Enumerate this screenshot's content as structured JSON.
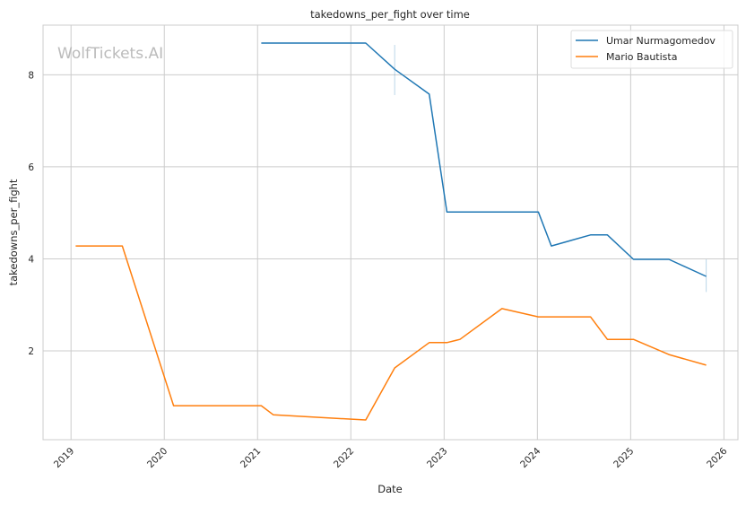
{
  "chart_data": {
    "type": "line",
    "title": "takedowns_per_fight over time",
    "xlabel": "Date",
    "ylabel": "takedowns_per_fight",
    "xlim": [
      2018.7,
      2026.15
    ],
    "ylim": [
      0.07,
      9.08
    ],
    "x_ticks": [
      2019,
      2020,
      2021,
      2022,
      2023,
      2024,
      2025,
      2026
    ],
    "x_tick_labels": [
      "2019",
      "2020",
      "2021",
      "2022",
      "2023",
      "2024",
      "2025",
      "2026"
    ],
    "y_ticks": [
      2,
      4,
      6,
      8
    ],
    "y_tick_labels": [
      "2",
      "4",
      "6",
      "8"
    ],
    "grid": true,
    "legend_position": "top-right",
    "watermark": "WolfTickets.AI",
    "series": [
      {
        "name": "Umar Nurmagomedov",
        "color": "#1f77b4",
        "x": [
          2021.04,
          2022.16,
          2022.47,
          2022.84,
          2023.03,
          2024.01,
          2024.15,
          2024.57,
          2024.75,
          2025.03,
          2025.41,
          2025.81
        ],
        "y": [
          8.69,
          8.69,
          8.12,
          7.58,
          5.02,
          5.02,
          4.28,
          4.52,
          4.52,
          3.99,
          3.99,
          3.62
        ],
        "error_bars": [
          {
            "x": 2022.47,
            "low": 7.56,
            "high": 8.65
          },
          {
            "x": 2025.81,
            "low": 3.28,
            "high": 3.99
          }
        ]
      },
      {
        "name": "Mario Bautista",
        "color": "#ff7f0e",
        "x": [
          2019.05,
          2019.55,
          2020.1,
          2021.04,
          2021.17,
          2022.16,
          2022.47,
          2022.84,
          2023.03,
          2023.17,
          2023.62,
          2024.01,
          2024.57,
          2024.75,
          2025.03,
          2025.41,
          2025.81
        ],
        "y": [
          4.28,
          4.28,
          0.81,
          0.81,
          0.61,
          0.5,
          1.63,
          2.18,
          2.18,
          2.25,
          2.92,
          2.74,
          2.74,
          2.25,
          2.25,
          1.92,
          1.69
        ],
        "error_bars": []
      }
    ]
  }
}
